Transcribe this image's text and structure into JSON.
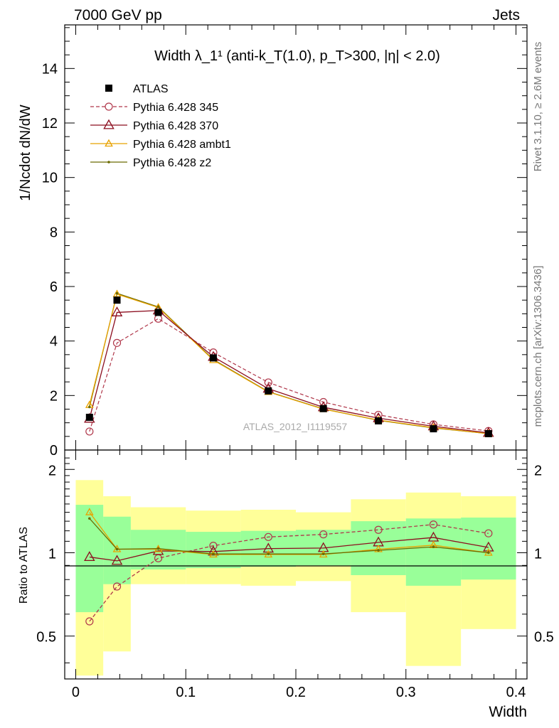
{
  "header": {
    "left": "7000 GeV pp",
    "right": "Jets"
  },
  "side": {
    "rivet": "Rivet 3.1.10, ≥ 2.6M events",
    "source": "mcplots.cern.ch [arXiv:1306.3436]"
  },
  "chart_data": [
    {
      "type": "line",
      "panel": "main",
      "title": "Width λ_1¹ (anti-k_T(1.0), p_T>300, |η| < 2.0)",
      "xlabel": "Width",
      "ylabel": "1/Ncdot dN/dW",
      "xlim": [
        -0.01,
        0.41
      ],
      "ylim": [
        0,
        15.6
      ],
      "yticks": [
        0,
        2,
        4,
        6,
        8,
        10,
        12,
        14
      ],
      "watermark": "ATLAS_2012_I1119557",
      "legend_position": "top-left",
      "x": [
        0.0125,
        0.0375,
        0.075,
        0.125,
        0.175,
        0.225,
        0.275,
        0.325,
        0.375
      ],
      "series": [
        {
          "name": "ATLAS",
          "style": "data",
          "color": "#000000",
          "values": [
            1.2,
            5.5,
            5.05,
            3.38,
            2.17,
            1.52,
            1.07,
            0.78,
            0.6
          ]
        },
        {
          "name": "Pythia 6.428 345",
          "style": "dashed-circle",
          "color": "#b0374a",
          "values": [
            0.68,
            3.93,
            4.82,
            3.58,
            2.48,
            1.76,
            1.29,
            0.94,
            0.7
          ]
        },
        {
          "name": "Pythia 6.428 370",
          "style": "solid-triangle",
          "color": "#8c0e1f",
          "values": [
            1.15,
            5.05,
            5.12,
            3.42,
            2.25,
            1.57,
            1.17,
            0.87,
            0.63
          ]
        },
        {
          "name": "Pythia 6.428 ambt1",
          "style": "solid-triangle-small",
          "color": "#e8a200",
          "values": [
            1.65,
            5.72,
            5.23,
            3.3,
            2.13,
            1.5,
            1.1,
            0.82,
            0.6
          ]
        },
        {
          "name": "Pythia 6.428 z2",
          "style": "solid-dot",
          "color": "#6b6b00",
          "values": [
            1.58,
            5.75,
            5.25,
            3.32,
            2.14,
            1.51,
            1.09,
            0.81,
            0.6
          ]
        }
      ]
    },
    {
      "type": "line",
      "panel": "ratio",
      "ylabel": "Ratio to ATLAS",
      "xlabel": "Width",
      "xlim": [
        -0.01,
        0.41
      ],
      "ylim": [
        0.35,
        2.35
      ],
      "ylog": true,
      "yticks": [
        0.5,
        1,
        2
      ],
      "xticks": [
        0,
        0.1,
        0.2,
        0.3,
        0.4
      ],
      "bins": [
        [
          0,
          0.025
        ],
        [
          0.025,
          0.05
        ],
        [
          0.05,
          0.1
        ],
        [
          0.1,
          0.15
        ],
        [
          0.15,
          0.2
        ],
        [
          0.2,
          0.25
        ],
        [
          0.25,
          0.3
        ],
        [
          0.3,
          0.35
        ],
        [
          0.35,
          0.4
        ]
      ],
      "band_stat": {
        "color": "#99ff99",
        "lo": [
          0.61,
          0.77,
          0.87,
          0.88,
          0.89,
          0.9,
          0.83,
          0.76,
          0.8
        ],
        "hi": [
          1.49,
          1.35,
          1.21,
          1.19,
          1.2,
          1.21,
          1.3,
          1.33,
          1.34
        ]
      },
      "band_total": {
        "color": "#ffff99",
        "lo": [
          0.36,
          0.44,
          0.77,
          0.77,
          0.76,
          0.79,
          0.61,
          0.39,
          0.53
        ],
        "hi": [
          1.83,
          1.6,
          1.46,
          1.42,
          1.43,
          1.4,
          1.56,
          1.65,
          1.6
        ]
      },
      "series": [
        {
          "name": "Pythia 6.428 345",
          "values": [
            0.565,
            0.755,
            0.955,
            1.06,
            1.14,
            1.165,
            1.21,
            1.265,
            1.175
          ]
        },
        {
          "name": "Pythia 6.428 370",
          "values": [
            0.965,
            0.935,
            1.015,
            1.01,
            1.035,
            1.04,
            1.09,
            1.135,
            1.045
          ]
        },
        {
          "name": "Pythia 6.428 ambt1",
          "values": [
            1.4,
            1.03,
            1.03,
            0.985,
            0.985,
            0.985,
            1.03,
            1.065,
            1.0
          ]
        },
        {
          "name": "Pythia 6.428 z2",
          "values": [
            1.33,
            1.03,
            1.035,
            0.99,
            0.99,
            0.99,
            1.02,
            1.05,
            1.0
          ]
        }
      ]
    }
  ]
}
